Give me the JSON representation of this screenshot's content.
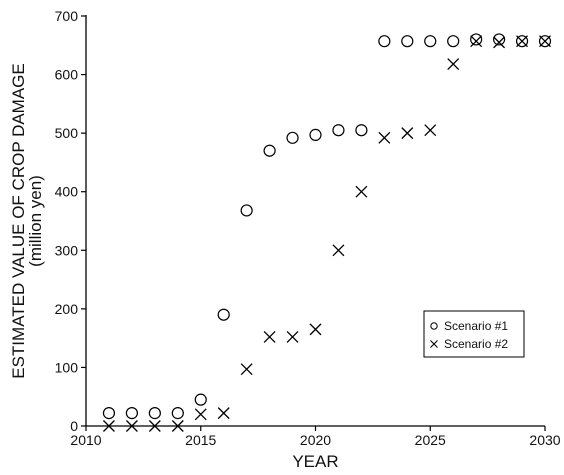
{
  "chart_data": {
    "type": "scatter",
    "xlabel": "YEAR",
    "ylabel": "ESTIMATED VALUE OF CROP DAMAGE",
    "ylabel_unit": "(million yen)",
    "xlim": [
      2010,
      2030
    ],
    "ylim": [
      0,
      700
    ],
    "x_ticks": [
      2010,
      2015,
      2020,
      2025,
      2030
    ],
    "y_ticks": [
      0,
      100,
      200,
      300,
      400,
      500,
      600,
      700
    ],
    "grid": false,
    "legend_position": "bottom-right",
    "series": [
      {
        "name": "Scenario #1",
        "marker": "circle",
        "points": [
          [
            2011,
            22
          ],
          [
            2012,
            22
          ],
          [
            2013,
            22
          ],
          [
            2014,
            22
          ],
          [
            2015,
            45
          ],
          [
            2016,
            190
          ],
          [
            2017,
            368
          ],
          [
            2018,
            470
          ],
          [
            2019,
            492
          ],
          [
            2020,
            497
          ],
          [
            2021,
            505
          ],
          [
            2022,
            505
          ],
          [
            2023,
            657
          ],
          [
            2024,
            657
          ],
          [
            2025,
            657
          ],
          [
            2026,
            657
          ],
          [
            2027,
            660
          ],
          [
            2028,
            660
          ],
          [
            2029,
            657
          ],
          [
            2030,
            657
          ]
        ]
      },
      {
        "name": "Scenario #2",
        "marker": "cross",
        "points": [
          [
            2011,
            0
          ],
          [
            2012,
            0
          ],
          [
            2013,
            0
          ],
          [
            2014,
            0
          ],
          [
            2015,
            20
          ],
          [
            2016,
            22
          ],
          [
            2017,
            97
          ],
          [
            2018,
            152
          ],
          [
            2019,
            152
          ],
          [
            2020,
            165
          ],
          [
            2021,
            300
          ],
          [
            2022,
            400
          ],
          [
            2023,
            492
          ],
          [
            2024,
            500
          ],
          [
            2025,
            505
          ],
          [
            2026,
            618
          ],
          [
            2027,
            657
          ],
          [
            2028,
            655
          ],
          [
            2029,
            657
          ],
          [
            2030,
            657
          ]
        ]
      }
    ]
  }
}
